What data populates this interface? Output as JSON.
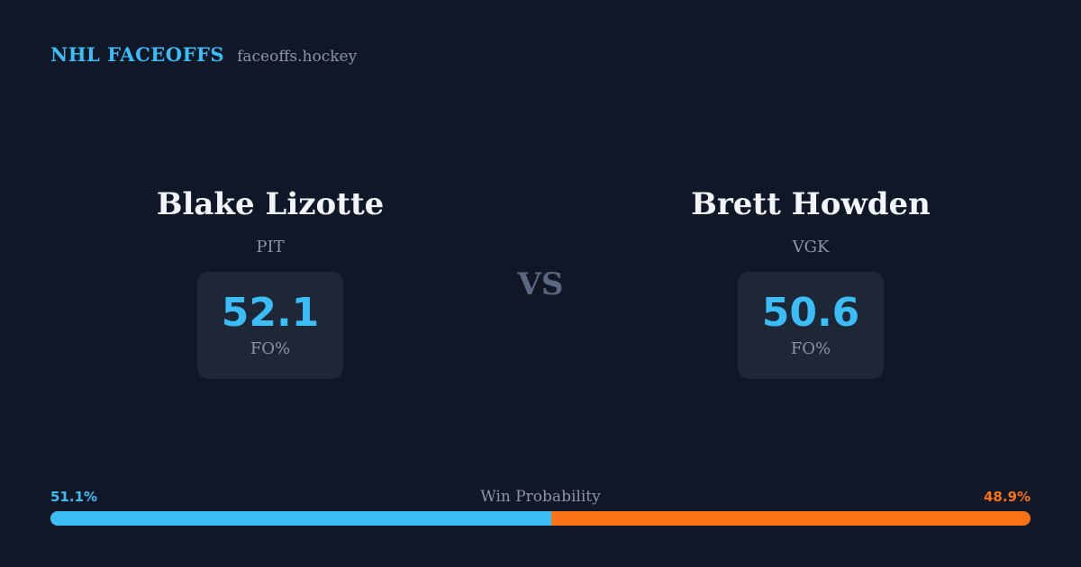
{
  "colors": {
    "background": "#101726",
    "card": "#1e2736",
    "accent_blue": "#3bbdf8",
    "accent_orange": "#f97316",
    "muted_text": "#8b95a6",
    "vs_text": "#5b6880",
    "name_text": "#f1f5f9"
  },
  "header": {
    "brand": "NHL FACEOFFS",
    "site": "faceoffs.hockey"
  },
  "matchup": {
    "vs_label": "VS",
    "players": [
      {
        "name": "Blake Lizotte",
        "team": "PIT",
        "stat_value": "52.1",
        "stat_label": "FO%"
      },
      {
        "name": "Brett Howden",
        "team": "VGK",
        "stat_value": "50.6",
        "stat_label": "FO%"
      }
    ]
  },
  "win_probability": {
    "label": "Win Probability",
    "left_pct_label": "51.1%",
    "right_pct_label": "48.9%",
    "left_value": 51.1,
    "right_value": 48.9
  },
  "chart_data": {
    "type": "bar",
    "title": "Win Probability",
    "orientation": "horizontal-stacked",
    "categories": [
      "Blake Lizotte (PIT)",
      "Brett Howden (VGK)"
    ],
    "values": [
      51.1,
      48.9
    ],
    "value_labels": [
      "51.1%",
      "48.9%"
    ],
    "colors": [
      "#3bbdf8",
      "#f97316"
    ],
    "xlim": [
      0,
      100
    ],
    "grid": false,
    "legend": false,
    "related_stats": {
      "stat_name": "FO%",
      "values": [
        52.1,
        50.6
      ]
    }
  }
}
